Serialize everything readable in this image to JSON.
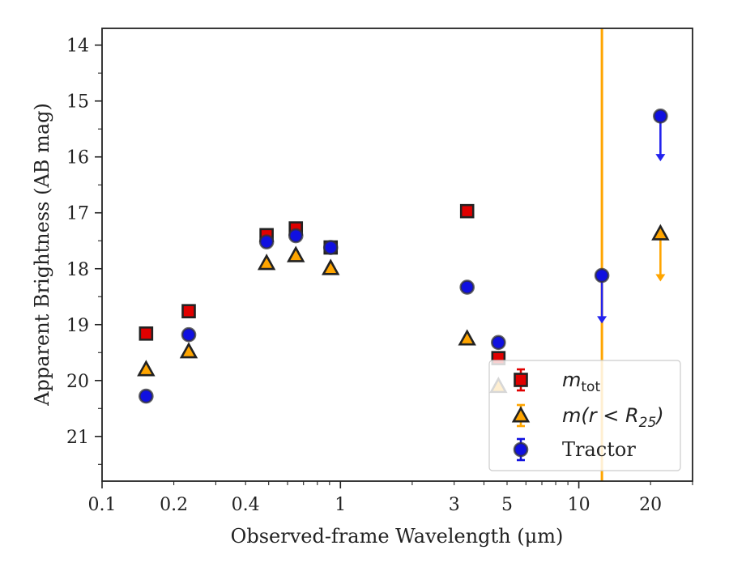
{
  "chart_data": {
    "type": "scatter",
    "title": "",
    "xlabel": "Observed-frame Wavelength (μm)",
    "ylabel": "Apparent Brightness (AB mag)",
    "xscale": "log",
    "xlim": [
      0.1,
      30
    ],
    "ylim": [
      21.8,
      13.7
    ],
    "y_inverted": true,
    "grid": false,
    "legend_position": "lower-right",
    "x_ticks": [
      {
        "value": 0.1,
        "label": "0.1"
      },
      {
        "value": 0.2,
        "label": "0.2"
      },
      {
        "value": 0.4,
        "label": "0.4"
      },
      {
        "value": 1,
        "label": "1"
      },
      {
        "value": 3,
        "label": "3"
      },
      {
        "value": 5,
        "label": "5"
      },
      {
        "value": 10,
        "label": "10"
      },
      {
        "value": 20,
        "label": "20"
      }
    ],
    "y_ticks": [
      {
        "value": 14,
        "label": "14"
      },
      {
        "value": 15,
        "label": "15"
      },
      {
        "value": 16,
        "label": "16"
      },
      {
        "value": 17,
        "label": "17"
      },
      {
        "value": 18,
        "label": "18"
      },
      {
        "value": 19,
        "label": "19"
      },
      {
        "value": 20,
        "label": "20"
      },
      {
        "value": 21,
        "label": "21"
      }
    ],
    "vertical_line": {
      "x": 12.5,
      "color": "#ffa500"
    },
    "series": [
      {
        "name": "m_tot",
        "marker": "square",
        "color": "#e00000",
        "points": [
          {
            "x": 0.153,
            "y": 19.16
          },
          {
            "x": 0.231,
            "y": 18.76
          },
          {
            "x": 0.49,
            "y": 17.4
          },
          {
            "x": 0.65,
            "y": 17.28
          },
          {
            "x": 0.91,
            "y": 17.62
          },
          {
            "x": 3.4,
            "y": 16.97
          },
          {
            "x": 4.6,
            "y": 19.6
          }
        ]
      },
      {
        "name": "m(r < R25)",
        "marker": "triangle",
        "color": "#ffa500",
        "points": [
          {
            "x": 0.153,
            "y": 19.8
          },
          {
            "x": 0.231,
            "y": 19.48
          },
          {
            "x": 0.49,
            "y": 17.9
          },
          {
            "x": 0.65,
            "y": 17.76
          },
          {
            "x": 0.91,
            "y": 17.99
          },
          {
            "x": 3.4,
            "y": 19.25
          },
          {
            "x": 4.6,
            "y": 20.1
          },
          {
            "x": 22,
            "y": 17.37,
            "upper_limit": true,
            "arrow_to": 18.2
          }
        ]
      },
      {
        "name": "Tractor",
        "marker": "circle",
        "color": "#1010e0",
        "points": [
          {
            "x": 0.153,
            "y": 20.28
          },
          {
            "x": 0.231,
            "y": 19.18
          },
          {
            "x": 0.49,
            "y": 17.52
          },
          {
            "x": 0.65,
            "y": 17.41
          },
          {
            "x": 0.91,
            "y": 17.62
          },
          {
            "x": 3.4,
            "y": 18.33
          },
          {
            "x": 4.6,
            "y": 19.32
          },
          {
            "x": 12.5,
            "y": 18.12,
            "upper_limit": true,
            "arrow_to": 18.95
          },
          {
            "x": 22,
            "y": 15.27,
            "upper_limit": true,
            "arrow_to": 16.05
          }
        ]
      }
    ],
    "legend": {
      "entries": [
        {
          "marker": "square",
          "color": "#e00000",
          "label_main": "m",
          "label_sub": "tot",
          "label_rest": ""
        },
        {
          "marker": "triangle",
          "color": "#ffa500",
          "label_main": "m(r < R",
          "label_sub": "25",
          "label_rest": ")"
        },
        {
          "marker": "circle",
          "color": "#1010e0",
          "label_main": "Tractor",
          "label_sub": "",
          "label_rest": ""
        }
      ]
    }
  }
}
